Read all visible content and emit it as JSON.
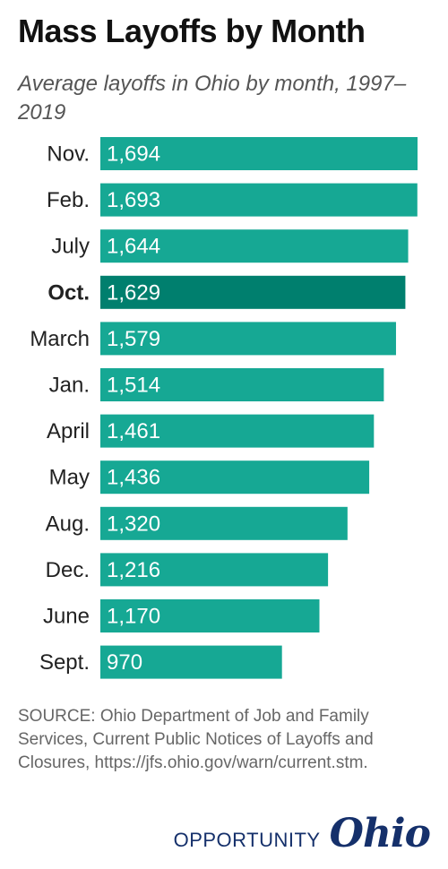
{
  "title": "Mass Layoffs by Month",
  "subtitle": "Average layoffs in Ohio by month, 1997–2019",
  "source": "SOURCE: Ohio Department of Job and Family Services, Current Public Notices of Layoffs and Closures, https://jfs.ohio.gov/warn/current.stm.",
  "brand": {
    "word": "OPPORTUNITY",
    "script": "Ohio"
  },
  "colors": {
    "bar": "#16a894",
    "highlight": "#007f6e",
    "label": "#222222",
    "value_text": "#ffffff"
  },
  "chart_data": {
    "type": "bar",
    "orientation": "horizontal",
    "categories": [
      "Nov.",
      "Feb.",
      "July",
      "Oct.",
      "March",
      "Jan.",
      "April",
      "May",
      "Aug.",
      "Dec.",
      "June",
      "Sept."
    ],
    "values": [
      1694,
      1693,
      1644,
      1629,
      1579,
      1514,
      1461,
      1436,
      1320,
      1216,
      1170,
      970
    ],
    "value_labels": [
      "1,694",
      "1,693",
      "1,644",
      "1,629",
      "1,579",
      "1,514",
      "1,461",
      "1,436",
      "1,320",
      "1,216",
      "1,170",
      "970"
    ],
    "highlight": "Oct.",
    "xlim": [
      0,
      1694
    ],
    "grid": false,
    "legend": "none"
  }
}
